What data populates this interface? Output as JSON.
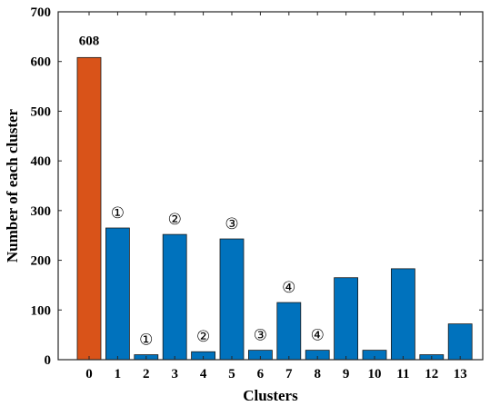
{
  "chart_data": {
    "type": "bar",
    "xlabel": "Clusters",
    "ylabel": "Number of each cluster",
    "categories": [
      "0",
      "1",
      "2",
      "3",
      "4",
      "5",
      "6",
      "7",
      "8",
      "9",
      "10",
      "11",
      "12",
      "13"
    ],
    "values": [
      608,
      265,
      10,
      252,
      16,
      243,
      19,
      115,
      19,
      165,
      19,
      183,
      10,
      72
    ],
    "bar_colors": [
      "#d95319",
      "#0072bd",
      "#0072bd",
      "#0072bd",
      "#0072bd",
      "#0072bd",
      "#0072bd",
      "#0072bd",
      "#0072bd",
      "#0072bd",
      "#0072bd",
      "#0072bd",
      "#0072bd",
      "#0072bd"
    ],
    "ylim": [
      0,
      700
    ],
    "yticks": [
      "0",
      "100",
      "200",
      "300",
      "400",
      "500",
      "600",
      "700"
    ],
    "data_labels": [
      {
        "category": "0",
        "text": "608"
      }
    ],
    "annotations": [
      {
        "category": "1",
        "text": "①"
      },
      {
        "category": "2",
        "text": "①"
      },
      {
        "category": "3",
        "text": "②"
      },
      {
        "category": "4",
        "text": "②"
      },
      {
        "category": "5",
        "text": "③"
      },
      {
        "category": "6",
        "text": "③"
      },
      {
        "category": "7",
        "text": "④"
      },
      {
        "category": "8",
        "text": "④"
      }
    ],
    "grid": false,
    "box": true
  }
}
